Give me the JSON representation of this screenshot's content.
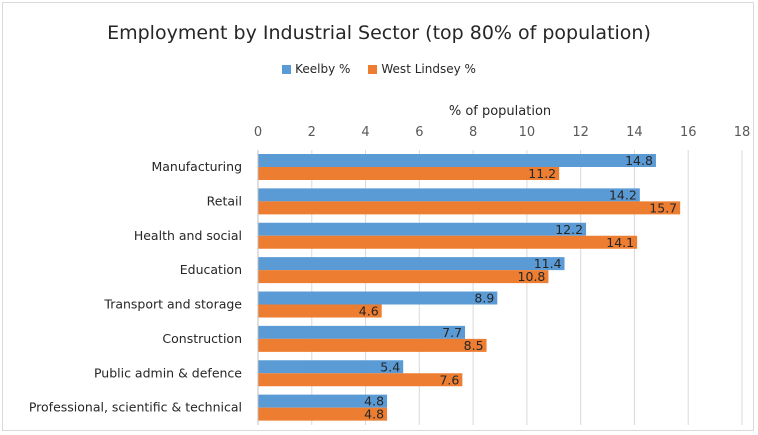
{
  "chart_data": {
    "type": "bar",
    "orientation": "horizontal",
    "title": "Employment by Industrial Sector (top 80% of population)",
    "xlabel": "% of population",
    "ylabel": "",
    "xlim": [
      0,
      18
    ],
    "xticks": [
      0,
      2,
      4,
      6,
      8,
      10,
      12,
      14,
      16,
      18
    ],
    "grid": true,
    "legend_position": "top",
    "categories": [
      "Manufacturing",
      "Retail",
      "Health and social",
      "Education",
      "Transport and storage",
      "Construction",
      "Public admin & defence",
      "Professional, scientific & technical"
    ],
    "series": [
      {
        "name": "Keelby %",
        "color": "#5b9bd5",
        "values": [
          14.8,
          14.2,
          12.2,
          11.4,
          8.9,
          7.7,
          5.4,
          4.8
        ]
      },
      {
        "name": "West Lindsey %",
        "color": "#ed7d31",
        "values": [
          11.2,
          15.7,
          14.1,
          10.8,
          4.6,
          8.5,
          7.6,
          4.8
        ]
      }
    ]
  }
}
